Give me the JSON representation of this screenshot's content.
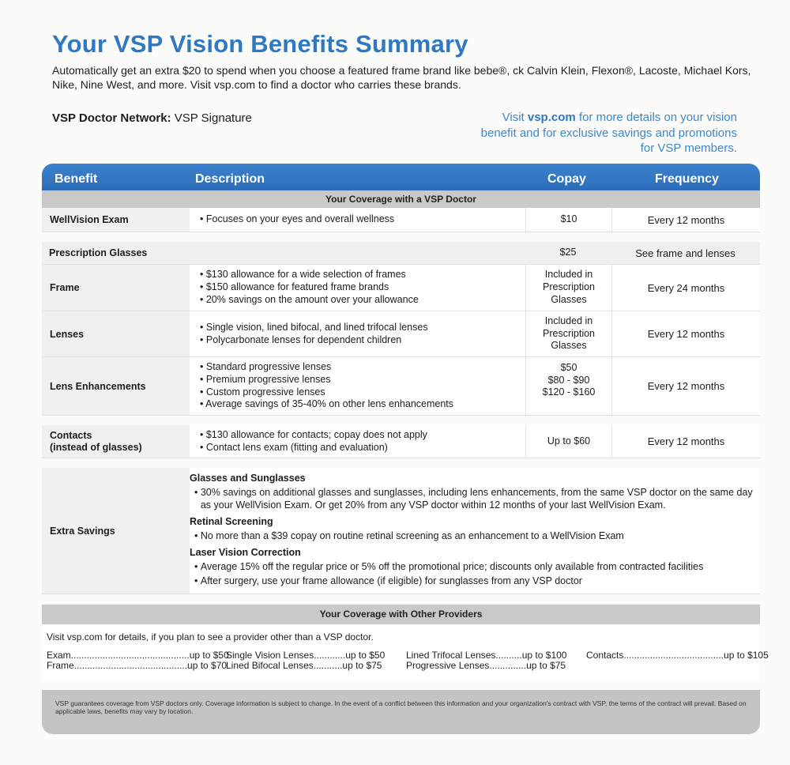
{
  "title": "Your VSP Vision Benefits Summary",
  "intro": "Automatically get an extra $20 to spend when you choose a featured frame brand like bebe®, ck Calvin Klein, Flexon®, Lacoste, Michael Kors, Nike, Nine West, and more. Visit vsp.com to find a doctor who carries these brands.",
  "network": {
    "label": "VSP Doctor Network:",
    "value": "VSP Signature"
  },
  "visit": {
    "pre": "Visit ",
    "link": "vsp.com",
    "post": " for more details on your vision benefit and for exclusive savings and promotions for VSP members."
  },
  "table": {
    "headers": {
      "benefit": "Benefit",
      "description": "Description",
      "copay": "Copay",
      "frequency": "Frequency"
    },
    "vsp_band": "Your Coverage with a VSP Doctor",
    "wellvision": {
      "benefit": "WellVision Exam",
      "desc": [
        "Focuses on your eyes and overall wellness"
      ],
      "copay": "$10",
      "frequency": "Every 12 months"
    },
    "glasses": {
      "benefit": "Prescription Glasses",
      "copay": "$25",
      "frequency": "See frame and lenses"
    },
    "frame": {
      "benefit": "Frame",
      "desc": [
        "$130 allowance for a wide selection of frames",
        "$150 allowance for featured frame brands",
        "20% savings on the amount over your allowance"
      ],
      "copay": [
        "Included in",
        "Prescription",
        "Glasses"
      ],
      "frequency": "Every 24 months"
    },
    "lenses": {
      "benefit": "Lenses",
      "desc": [
        "Single vision, lined bifocal, and lined trifocal lenses",
        "Polycarbonate lenses for dependent children"
      ],
      "copay": [
        "Included in",
        "Prescription",
        "Glasses"
      ],
      "frequency": "Every 12 months"
    },
    "enhancements": {
      "benefit": "Lens Enhancements",
      "desc": [
        "Standard progressive lenses",
        "Premium progressive lenses",
        "Custom progressive lenses",
        "Average savings of 35-40% on other lens enhancements"
      ],
      "copay": [
        "$50",
        "$80 - $90",
        "$120 - $160"
      ],
      "frequency": "Every 12 months"
    },
    "contacts": {
      "benefit": [
        "Contacts",
        "(instead of glasses)"
      ],
      "desc": [
        "$130 allowance for contacts; copay does not apply",
        "Contact lens exam (fitting and evaluation)"
      ],
      "copay": "Up to $60",
      "frequency": "Every 12 months"
    },
    "extra": {
      "benefit": "Extra Savings",
      "sections": [
        {
          "heading": "Glasses and Sunglasses",
          "items": [
            "30% savings on additional glasses and sunglasses, including lens enhancements, from the same VSP doctor on the same day as your WellVision Exam. Or get 20% from any VSP doctor within 12 months of your last WellVision Exam."
          ]
        },
        {
          "heading": "Retinal Screening",
          "items": [
            "No more than a $39 copay on routine retinal screening as an enhancement to a WellVision Exam"
          ]
        },
        {
          "heading": "Laser Vision Correction",
          "items": [
            "Average 15% off the regular price or 5% off the promotional price; discounts only available from contracted facilities",
            "After surgery, use your frame allowance (if eligible) for sunglasses from any VSP doctor"
          ]
        }
      ]
    },
    "other_band": "Your Coverage with Other Providers",
    "other_intro": "Visit vsp.com for details, if you plan to see a provider other than a VSP doctor.",
    "other_items": [
      "Exam.............................................up to $50",
      "Frame...........................................up to $70",
      "Single Vision Lenses............up to $50",
      "Lined Bifocal Lenses...........up to $75",
      "Lined Trifocal Lenses..........up to $100",
      "Progressive Lenses..............up to $75",
      "Contacts......................................up to $105"
    ],
    "footer": "VSP guarantees coverage from VSP doctors only. Coverage information is subject to change. In the event of a conflict between this information and your organization's contract with VSP, the terms of the contract will prevail. Based on applicable laws, benefits may vary by location."
  }
}
